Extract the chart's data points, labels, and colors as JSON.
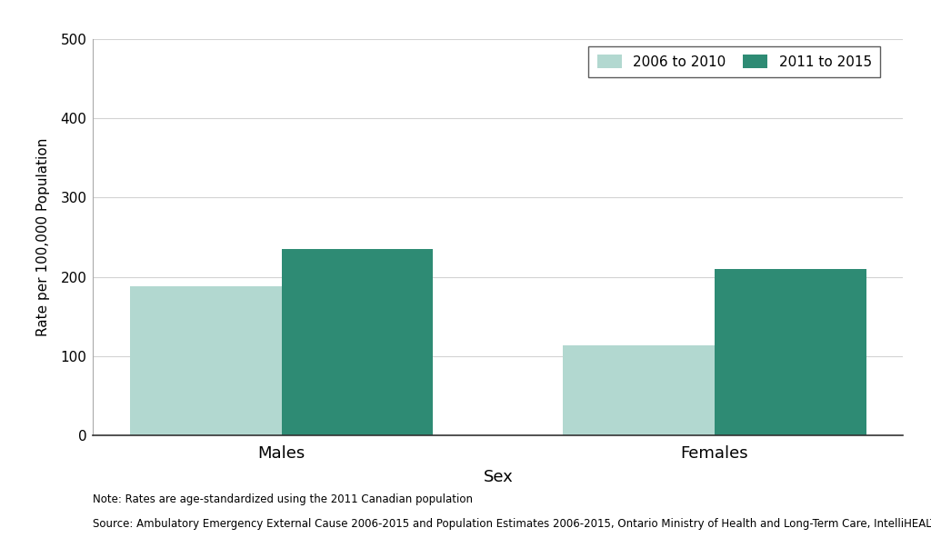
{
  "categories": [
    "Males",
    "Females"
  ],
  "series": [
    {
      "label": "2006 to 2010",
      "values": [
        188,
        113
      ],
      "color": "#b2d8d0"
    },
    {
      "label": "2011 to 2015",
      "values": [
        235,
        210
      ],
      "color": "#2e8b74"
    }
  ],
  "ylabel": "Rate per 100,000 Population",
  "xlabel": "Sex",
  "ylim": [
    0,
    500
  ],
  "yticks": [
    0,
    100,
    200,
    300,
    400,
    500
  ],
  "background_color": "#ffffff",
  "grid_color": "#d3d3d3",
  "note_line1": "Note: Rates are age-standardized using the 2011 Canadian population",
  "note_line2": "Source: Ambulatory Emergency External Cause 2006-2015 and Population Estimates 2006-2015, Ontario Ministry of Health and Long-Term Care, IntelliHEALTH Ontario",
  "bar_width": 0.35,
  "figsize": [
    10.24,
    6.14
  ],
  "dpi": 100
}
